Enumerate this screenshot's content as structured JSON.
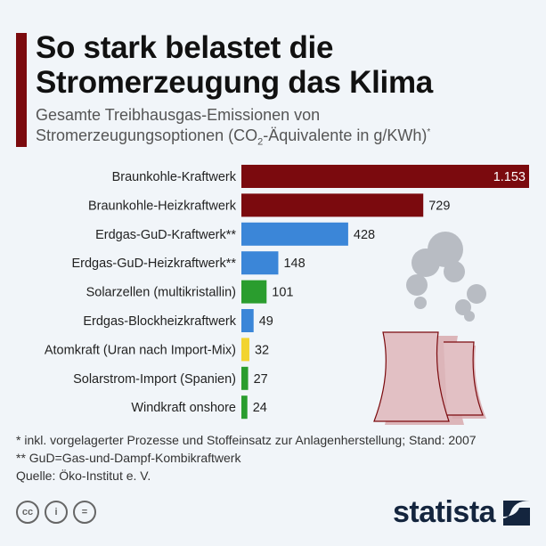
{
  "title": "So stark belastet die Stromerzeugung das Klima",
  "subtitle_line1": "Gesamte Treibhausgas-Emissionen von",
  "subtitle_line2_a": "Stromerzeugungsoptionen (CO",
  "subtitle_sub": "2",
  "subtitle_line2_b": "-Äquivalente in g/KWh)",
  "subtitle_sup": "*",
  "chart_data": {
    "type": "bar",
    "orientation": "horizontal",
    "categories": [
      "Braunkohle-Kraftwerk",
      "Braunkohle-Heizkraftwerk",
      "Erdgas-GuD-Kraftwerk**",
      "Erdgas-GuD-Heizkraftwerk**",
      "Solarzellen (multikristallin)",
      "Erdgas-Blockheizkraftwerk",
      "Atomkraft (Uran nach Import-Mix)",
      "Solarstrom-Import (Spanien)",
      "Windkraft onshore"
    ],
    "values": [
      1153,
      729,
      428,
      148,
      101,
      49,
      32,
      27,
      24
    ],
    "value_labels": [
      "1.153",
      "729",
      "428",
      "148",
      "101",
      "49",
      "32",
      "27",
      "24"
    ],
    "colors": [
      "#7b0a0e",
      "#7b0a0e",
      "#3b86d8",
      "#3b86d8",
      "#2a9d2e",
      "#3b86d8",
      "#f2d430",
      "#2a9d2e",
      "#2a9d2e"
    ],
    "xlim": [
      0,
      1153
    ],
    "unit": "g/KWh"
  },
  "notes": [
    "*   inkl. vorgelagerter Prozesse und Stoffeinsatz zur Anlagenherstellung; Stand: 2007",
    "** GuD=Gas-und-Dampf-Kombikraftwerk",
    "Quelle: Öko-Institut e. V."
  ],
  "brand": "statista"
}
